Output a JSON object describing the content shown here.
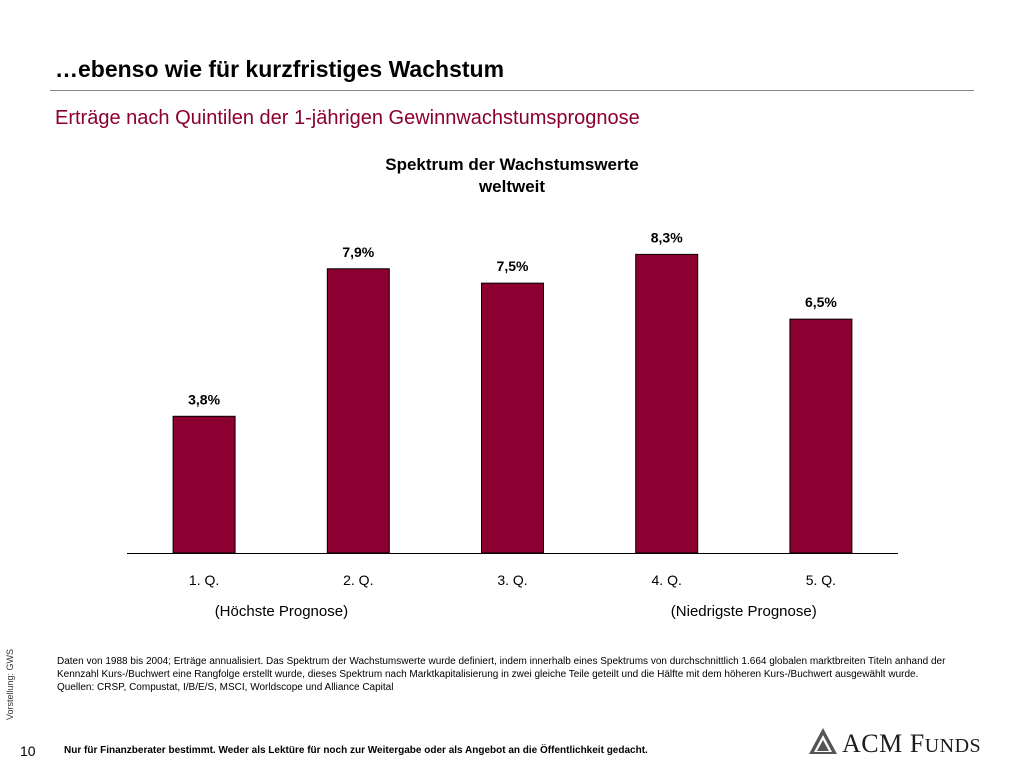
{
  "slide": {
    "title": "…ebenso wie für kurzfristiges Wachstum",
    "subtitle": "Erträge nach Quintilen der 1-jährigen Gewinnwachstumsprognose"
  },
  "chart_data": {
    "type": "bar",
    "title_line1": "Spektrum der Wachstumswerte",
    "title_line2": "weltweit",
    "categories": [
      "1. Q.",
      "2. Q.",
      "3. Q.",
      "4. Q.",
      "5. Q."
    ],
    "values": [
      3.8,
      7.9,
      7.5,
      8.3,
      6.5
    ],
    "value_labels": [
      "3,8%",
      "7,9%",
      "7,5%",
      "8,3%",
      "6,5%"
    ],
    "sub_labels": [
      "(Höchste Prognose)",
      "(Niedrigste Prognose)"
    ],
    "ylim": [
      0,
      9.2
    ],
    "grid": false,
    "bar_color": "#8b0030"
  },
  "side_note": "Vorstellung: GWS",
  "footnote": {
    "line1": "Daten von 1988 bis 2004; Erträge annualisiert. Das Spektrum der Wachstumswerte wurde definiert, indem innerhalb eines Spektrums von durchschnittlich 1.664 globalen marktbreiten Titeln anhand der Kennzahl Kurs-/Buchwert eine Rangfolge erstellt wurde, dieses Spektrum nach Marktkapitalisierung in zwei gleiche Teile geteilt und die Hälfte mit dem höheren Kurs-/Buchwert ausgewählt wurde.",
    "sources": "Quellen: CRSP, Compustat, I/B/E/S, MSCI, Worldscope und Alliance Capital"
  },
  "page_number": "10",
  "disclaimer": "Nur für Finanzberater bestimmt. Weder als Lektüre für noch zur Weitergabe oder als Angebot an die Öffentlichkeit gedacht.",
  "logo": {
    "text_main": "ACM F",
    "text_small": "UNDS",
    "icon": "acm-logo-icon"
  }
}
